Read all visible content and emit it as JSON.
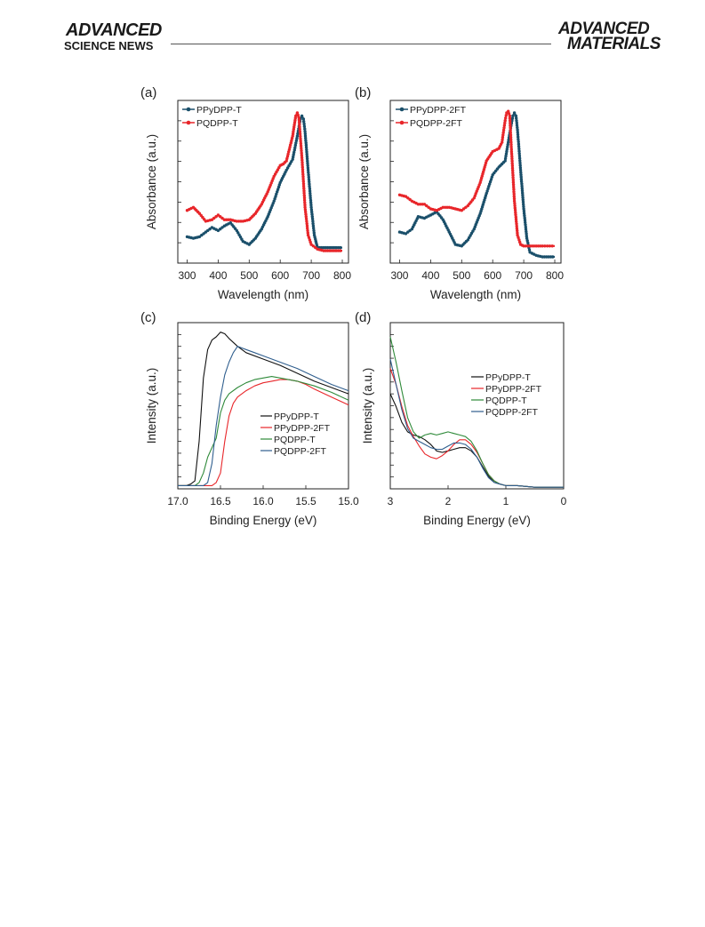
{
  "header": {
    "left_brand_top": "ADVANCED",
    "left_brand_sub": "SCIENCE NEWS",
    "right_brand_top": "ADVANCED",
    "right_brand_bottom": "MATERIALS"
  },
  "colors": {
    "dark_teal": "#1a4f6a",
    "red": "#e8262a",
    "black": "#111111",
    "green": "#2f8a3a",
    "blue": "#2f5e8e"
  },
  "chart_data": [
    {
      "panel": "(a)",
      "type": "line",
      "xlabel": "Wavelength (nm)",
      "ylabel": "Absorbance (a.u.)",
      "xlim": [
        270,
        820
      ],
      "ylim": [
        0,
        1.05
      ],
      "xticks": [
        300,
        400,
        500,
        600,
        700,
        800
      ],
      "markers": true,
      "legend": "top-left",
      "series": [
        {
          "name": "PPyDPP-T",
          "color": "#1a4f6a",
          "x": [
            300,
            320,
            340,
            360,
            380,
            400,
            420,
            440,
            460,
            480,
            500,
            520,
            540,
            560,
            580,
            600,
            620,
            640,
            655,
            665,
            670,
            675,
            680,
            690,
            700,
            710,
            720,
            740,
            760,
            780,
            800
          ],
          "y": [
            0.17,
            0.16,
            0.17,
            0.2,
            0.23,
            0.21,
            0.24,
            0.26,
            0.21,
            0.14,
            0.12,
            0.16,
            0.22,
            0.3,
            0.4,
            0.52,
            0.6,
            0.67,
            0.82,
            0.93,
            0.95,
            0.93,
            0.85,
            0.6,
            0.36,
            0.18,
            0.1,
            0.1,
            0.1,
            0.1,
            0.1
          ]
        },
        {
          "name": "PQDPP-T",
          "color": "#e8262a",
          "x": [
            300,
            320,
            340,
            360,
            380,
            400,
            420,
            440,
            460,
            480,
            500,
            520,
            540,
            560,
            580,
            600,
            610,
            620,
            640,
            650,
            655,
            660,
            670,
            680,
            690,
            700,
            720,
            740,
            760,
            780,
            800
          ],
          "y": [
            0.34,
            0.36,
            0.32,
            0.27,
            0.28,
            0.31,
            0.28,
            0.28,
            0.27,
            0.27,
            0.28,
            0.32,
            0.38,
            0.46,
            0.56,
            0.63,
            0.64,
            0.66,
            0.82,
            0.95,
            0.97,
            0.94,
            0.68,
            0.36,
            0.18,
            0.12,
            0.09,
            0.08,
            0.08,
            0.08,
            0.08
          ]
        }
      ]
    },
    {
      "panel": "(b)",
      "type": "line",
      "xlabel": "Wavelength (nm)",
      "ylabel": "Absorbance (a.u.)",
      "xlim": [
        270,
        820
      ],
      "ylim": [
        0,
        1.05
      ],
      "xticks": [
        300,
        400,
        500,
        600,
        700,
        800
      ],
      "markers": true,
      "legend": "top-left",
      "series": [
        {
          "name": "PPyDPP-2FT",
          "color": "#1a4f6a",
          "x": [
            300,
            320,
            340,
            360,
            380,
            400,
            420,
            440,
            460,
            480,
            500,
            520,
            540,
            560,
            580,
            600,
            620,
            640,
            655,
            665,
            670,
            675,
            680,
            690,
            700,
            710,
            720,
            740,
            760,
            780,
            800
          ],
          "y": [
            0.2,
            0.19,
            0.22,
            0.3,
            0.29,
            0.31,
            0.33,
            0.28,
            0.2,
            0.12,
            0.11,
            0.15,
            0.22,
            0.32,
            0.45,
            0.57,
            0.62,
            0.66,
            0.84,
            0.95,
            0.97,
            0.95,
            0.86,
            0.6,
            0.35,
            0.16,
            0.07,
            0.05,
            0.04,
            0.04,
            0.04
          ]
        },
        {
          "name": "PQDPP-2FT",
          "color": "#e8262a",
          "x": [
            300,
            320,
            340,
            360,
            380,
            400,
            420,
            440,
            460,
            480,
            500,
            520,
            540,
            560,
            580,
            600,
            620,
            630,
            640,
            645,
            650,
            655,
            660,
            670,
            680,
            690,
            700,
            720,
            740,
            760,
            800
          ],
          "y": [
            0.44,
            0.43,
            0.4,
            0.38,
            0.38,
            0.35,
            0.34,
            0.36,
            0.36,
            0.35,
            0.34,
            0.37,
            0.42,
            0.52,
            0.66,
            0.72,
            0.74,
            0.78,
            0.92,
            0.97,
            0.98,
            0.95,
            0.75,
            0.4,
            0.18,
            0.12,
            0.11,
            0.11,
            0.11,
            0.11,
            0.11
          ]
        }
      ]
    },
    {
      "panel": "(c)",
      "type": "line",
      "xlabel": "Binding Energy (eV)",
      "ylabel": "Intensity (a.u.)",
      "xlim": [
        17.0,
        15.0
      ],
      "xreversed": true,
      "ylim": [
        0,
        1.05
      ],
      "xticks": [
        "17.0",
        "16.5",
        "16.0",
        "15.5",
        "15.0"
      ],
      "markers": false,
      "legend": "lower-right",
      "series": [
        {
          "name": "PPyDPP-T",
          "color": "#111111",
          "x": [
            17.0,
            16.9,
            16.85,
            16.8,
            16.75,
            16.7,
            16.65,
            16.6,
            16.55,
            16.5,
            16.45,
            16.4,
            16.3,
            16.2,
            16.0,
            15.8,
            15.6,
            15.4,
            15.2,
            15.0
          ],
          "y": [
            0.02,
            0.02,
            0.03,
            0.05,
            0.3,
            0.7,
            0.88,
            0.94,
            0.96,
            0.99,
            0.98,
            0.95,
            0.9,
            0.86,
            0.82,
            0.78,
            0.73,
            0.68,
            0.64,
            0.6
          ]
        },
        {
          "name": "PPyDPP-2FT",
          "color": "#e8262a",
          "x": [
            17.0,
            16.7,
            16.6,
            16.55,
            16.5,
            16.45,
            16.4,
            16.35,
            16.3,
            16.2,
            16.1,
            16.0,
            15.9,
            15.8,
            15.7,
            15.6,
            15.5,
            15.4,
            15.2,
            15.0
          ],
          "y": [
            0.02,
            0.02,
            0.02,
            0.04,
            0.1,
            0.3,
            0.46,
            0.54,
            0.58,
            0.62,
            0.65,
            0.67,
            0.68,
            0.69,
            0.69,
            0.68,
            0.66,
            0.63,
            0.58,
            0.53
          ]
        },
        {
          "name": "PQDPP-T",
          "color": "#2f8a3a",
          "x": [
            17.0,
            16.8,
            16.75,
            16.7,
            16.65,
            16.6,
            16.55,
            16.5,
            16.45,
            16.4,
            16.3,
            16.2,
            16.1,
            16.0,
            15.9,
            15.8,
            15.6,
            15.4,
            15.2,
            15.0
          ],
          "y": [
            0.02,
            0.02,
            0.04,
            0.1,
            0.2,
            0.26,
            0.32,
            0.48,
            0.56,
            0.6,
            0.64,
            0.67,
            0.69,
            0.7,
            0.71,
            0.7,
            0.68,
            0.65,
            0.61,
            0.56
          ]
        },
        {
          "name": "PQDPP-2FT",
          "color": "#2f5e8e",
          "x": [
            17.0,
            16.7,
            16.65,
            16.6,
            16.55,
            16.5,
            16.45,
            16.4,
            16.35,
            16.3,
            16.25,
            16.2,
            16.1,
            16.0,
            15.8,
            15.6,
            15.4,
            15.2,
            15.0
          ],
          "y": [
            0.02,
            0.02,
            0.04,
            0.16,
            0.4,
            0.58,
            0.72,
            0.8,
            0.86,
            0.9,
            0.89,
            0.88,
            0.86,
            0.84,
            0.8,
            0.76,
            0.71,
            0.66,
            0.62
          ]
        }
      ]
    },
    {
      "panel": "(d)",
      "type": "line",
      "xlabel": "Binding Energy (eV)",
      "ylabel": "Intensity (a.u.)",
      "xlim": [
        3,
        0
      ],
      "xreversed": true,
      "ylim": [
        0,
        1.05
      ],
      "xticks": [
        "3",
        "2",
        "1",
        "0"
      ],
      "markers": false,
      "legend": "right",
      "series": [
        {
          "name": "PPyDPP-T",
          "color": "#111111",
          "x": [
            3.0,
            2.9,
            2.8,
            2.7,
            2.6,
            2.5,
            2.4,
            2.3,
            2.2,
            2.1,
            2.0,
            1.9,
            1.8,
            1.7,
            1.6,
            1.5,
            1.4,
            1.3,
            1.2,
            1.1,
            1.0,
            0.8,
            0.5,
            0.0
          ],
          "y": [
            0.6,
            0.52,
            0.42,
            0.36,
            0.34,
            0.33,
            0.31,
            0.28,
            0.24,
            0.23,
            0.24,
            0.25,
            0.26,
            0.26,
            0.24,
            0.2,
            0.14,
            0.08,
            0.04,
            0.03,
            0.02,
            0.02,
            0.01,
            0.01
          ]
        },
        {
          "name": "PPyDPP-2FT",
          "color": "#e8262a",
          "x": [
            3.0,
            2.9,
            2.8,
            2.7,
            2.6,
            2.5,
            2.4,
            2.3,
            2.2,
            2.1,
            2.0,
            1.9,
            1.8,
            1.7,
            1.6,
            1.5,
            1.4,
            1.3,
            1.2,
            1.1,
            1.0,
            0.8,
            0.5,
            0.0
          ],
          "y": [
            0.76,
            0.66,
            0.52,
            0.4,
            0.33,
            0.27,
            0.22,
            0.2,
            0.19,
            0.21,
            0.24,
            0.28,
            0.31,
            0.31,
            0.28,
            0.23,
            0.16,
            0.09,
            0.05,
            0.03,
            0.02,
            0.02,
            0.01,
            0.01
          ]
        },
        {
          "name": "PQDPP-T",
          "color": "#2f8a3a",
          "x": [
            3.0,
            2.9,
            2.8,
            2.7,
            2.6,
            2.5,
            2.4,
            2.3,
            2.2,
            2.1,
            2.0,
            1.9,
            1.8,
            1.7,
            1.6,
            1.5,
            1.4,
            1.3,
            1.2,
            1.1,
            1.0,
            0.8,
            0.5,
            0.0
          ],
          "y": [
            0.96,
            0.8,
            0.62,
            0.45,
            0.36,
            0.32,
            0.34,
            0.35,
            0.34,
            0.35,
            0.36,
            0.35,
            0.34,
            0.33,
            0.3,
            0.24,
            0.16,
            0.09,
            0.05,
            0.03,
            0.02,
            0.02,
            0.01,
            0.01
          ]
        },
        {
          "name": "PQDPP-2FT",
          "color": "#2f5e8e",
          "x": [
            3.0,
            2.9,
            2.8,
            2.7,
            2.6,
            2.5,
            2.4,
            2.3,
            2.2,
            2.1,
            2.0,
            1.9,
            1.8,
            1.7,
            1.6,
            1.5,
            1.4,
            1.3,
            1.2,
            1.1,
            1.0,
            0.8,
            0.5,
            0.0
          ],
          "y": [
            0.82,
            0.66,
            0.5,
            0.38,
            0.32,
            0.3,
            0.28,
            0.26,
            0.25,
            0.25,
            0.27,
            0.29,
            0.29,
            0.28,
            0.25,
            0.2,
            0.13,
            0.07,
            0.04,
            0.03,
            0.02,
            0.02,
            0.01,
            0.01
          ]
        }
      ]
    }
  ]
}
